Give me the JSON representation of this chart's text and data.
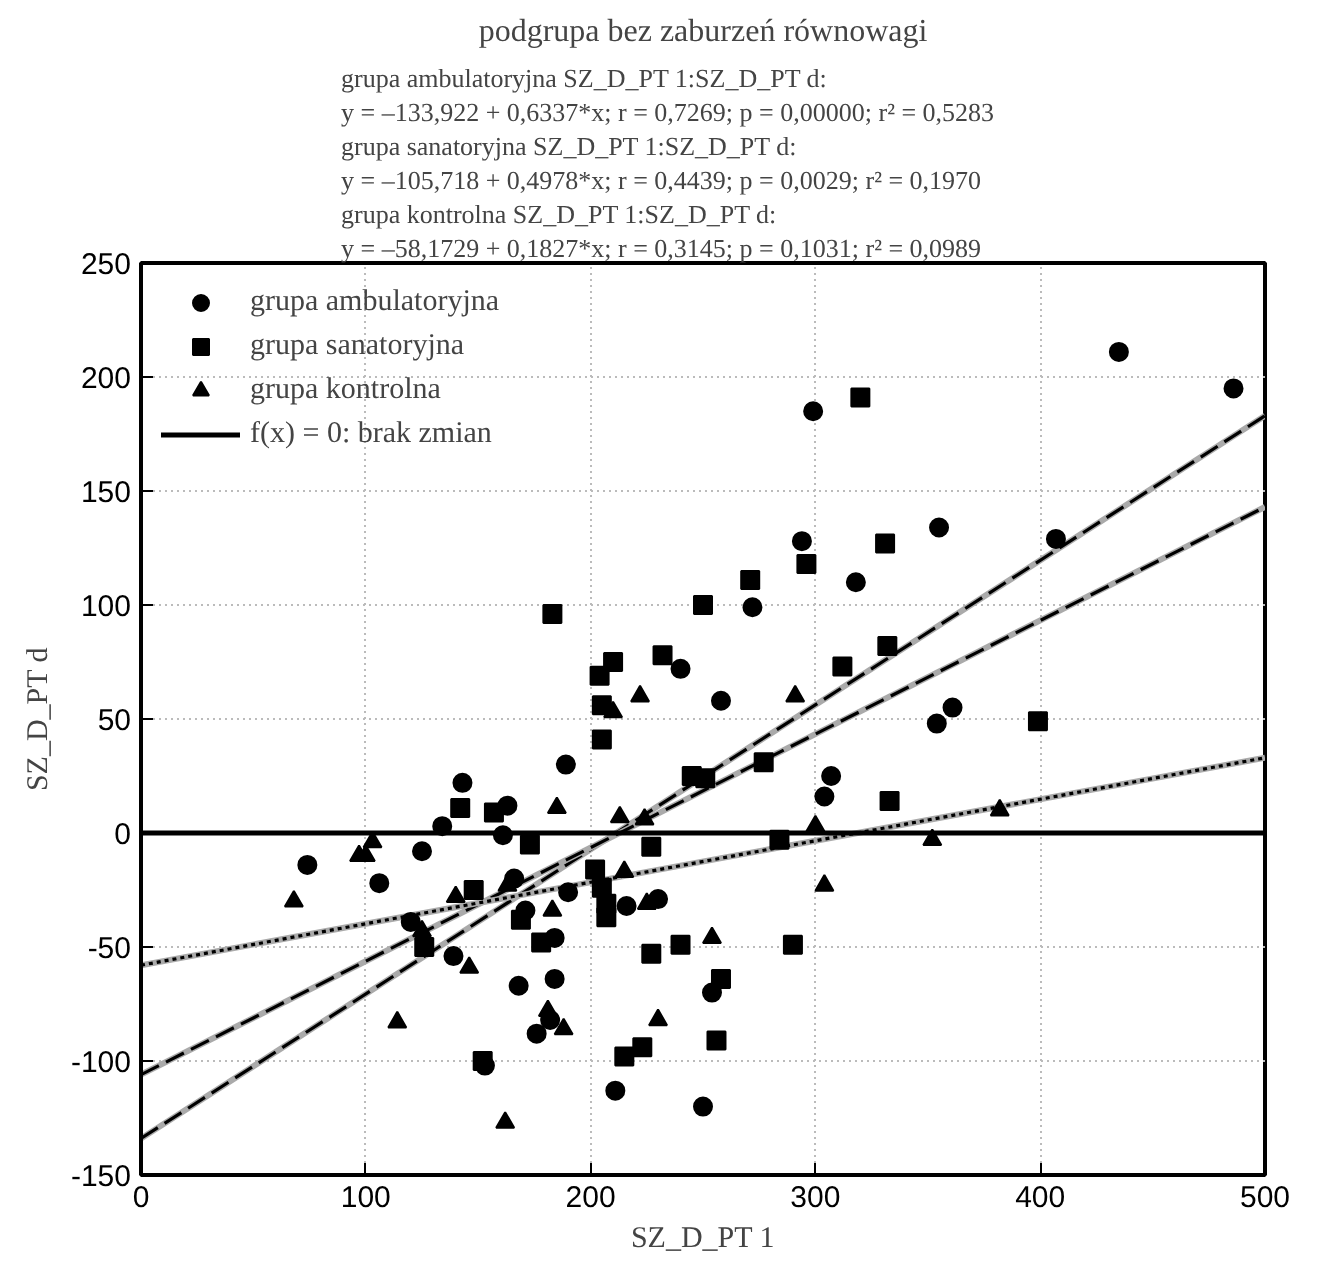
{
  "chart_data": {
    "type": "scatter",
    "title": "podgrupa bez zaburzeń równowagi",
    "annotations": [
      "grupa ambulatoryjna  SZ_D_PT 1:SZ_D_PT d:",
      "y = –133,922 + 0,6337*x;  r = 0,7269; p = 0,00000; r² = 0,5283",
      "grupa sanatoryjna  SZ_D_PT 1:SZ_D_PT d:",
      "y = –105,718 + 0,4978*x;  r = 0,4439; p = 0,0029; r² = 0,1970",
      "grupa kontrolna  SZ_D_PT 1:SZ_D_PT d:",
      "y = –58,1729 + 0,1827*x;  r = 0,3145; p = 0,1031; r² = 0,0989"
    ],
    "xlabel": "SZ_D_PT 1",
    "ylabel": "SZ_D_PT d",
    "xlim": [
      0,
      500
    ],
    "ylim": [
      -150,
      250
    ],
    "xticks": [
      0,
      100,
      200,
      300,
      400,
      500
    ],
    "yticks": [
      -150,
      -100,
      -50,
      0,
      50,
      100,
      150,
      200,
      250
    ],
    "grid": true,
    "legend": "top left",
    "ref_lines": [
      {
        "axis": "y",
        "value": 0,
        "label": "f(x) = 0: brak zmian",
        "color": "#000000",
        "line_style": "solid"
      }
    ],
    "series": [
      {
        "type": "line",
        "color": "#000000",
        "line_style": "dashed",
        "marker": "none",
        "x": [
          0,
          500
        ],
        "values": [
          -134,
          183
        ]
      },
      {
        "type": "line",
        "color": "#000000",
        "line_style": "dashed",
        "marker": "none",
        "x": [
          0,
          500
        ],
        "values": [
          -106,
          143
        ]
      },
      {
        "type": "line",
        "color": "#000000",
        "line_style": "dotted",
        "marker": "none",
        "x": [
          0,
          500
        ],
        "values": [
          -58,
          33
        ]
      },
      {
        "name": "grupa ambulatoryjna",
        "color": "#000000",
        "marker": "circle",
        "x": [
          299,
          435,
          486,
          294,
          355,
          318,
          407,
          272,
          240,
          258,
          354,
          361,
          307,
          304,
          230,
          254,
          250,
          74,
          106,
          125,
          120,
          134,
          143,
          139,
          153,
          161,
          163,
          166,
          171,
          168,
          176,
          182,
          184,
          184,
          189,
          190,
          211,
          216
        ],
        "values": [
          185,
          211,
          195,
          128,
          134,
          110,
          129,
          99,
          72,
          58,
          48,
          55,
          25,
          16,
          -29,
          -70,
          -120,
          -14,
          -22,
          -8,
          -39,
          3,
          22,
          -54,
          -102,
          -1,
          12,
          -20,
          -34,
          -67,
          -88,
          -82,
          -46,
          -64,
          30,
          -26,
          -113,
          -32
        ]
      },
      {
        "name": "grupa sanatoryjna",
        "color": "#000000",
        "marker": "square",
        "x": [
          183,
          204,
          210,
          205,
          205,
          232,
          320,
          331,
          296,
          271,
          250,
          332,
          312,
          399,
          245,
          251,
          277,
          333,
          284,
          227,
          240,
          227,
          290,
          258,
          256,
          142,
          148,
          126,
          152,
          157,
          173,
          169,
          178,
          202,
          205,
          207,
          207,
          215,
          223
        ],
        "values": [
          96,
          69,
          75,
          56,
          41,
          78,
          191,
          127,
          118,
          111,
          100,
          82,
          73,
          49,
          25,
          24,
          31,
          14,
          -3,
          -6,
          -49,
          -53,
          -49,
          -64,
          -91,
          11,
          -25,
          -50,
          -100,
          9,
          -5,
          -38,
          -48,
          -16,
          -24,
          -31,
          -37,
          -98,
          -94
        ]
      },
      {
        "name": "grupa kontrolna",
        "color": "#000000",
        "marker": "triangle",
        "x": [
          210,
          222,
          291,
          300,
          352,
          382,
          304,
          254,
          230,
          68,
          97,
          103,
          100,
          114,
          140,
          146,
          162,
          185,
          183,
          181,
          188,
          213,
          215,
          224,
          225,
          125,
          163
        ],
        "values": [
          53,
          60,
          60,
          3,
          -3,
          10,
          -23,
          -46,
          -82,
          -30,
          -10,
          -4,
          -10,
          -83,
          -28,
          -59,
          -127,
          11,
          -34,
          -78,
          -86,
          7,
          -17,
          6,
          -31,
          -43,
          -23
        ]
      }
    ]
  }
}
